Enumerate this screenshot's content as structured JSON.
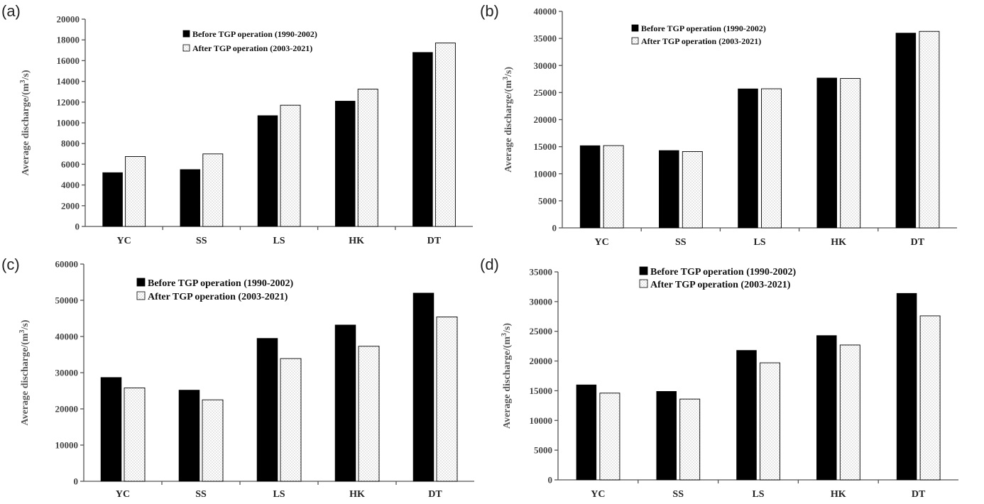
{
  "chart_data": [
    {
      "panel": "(a)",
      "type": "bar",
      "categories": [
        "YC",
        "SS",
        "LS",
        "HK",
        "DT"
      ],
      "series": [
        {
          "name": "Before TGP operation (1990-2002)",
          "values": [
            5200,
            5500,
            10700,
            12100,
            16800
          ]
        },
        {
          "name": "After TGP operation (2003-2021)",
          "values": [
            6750,
            7000,
            11700,
            13250,
            17700
          ]
        }
      ],
      "ylabel_main": "Average discharge/(m",
      "ylabel_sup": "3",
      "ylabel_tail": "/s)",
      "ylim": [
        0,
        20000
      ],
      "yticks": [
        "0",
        "2000",
        "4000",
        "6000",
        "8000",
        "10000",
        "12000",
        "14000",
        "16000",
        "18000",
        "20000"
      ],
      "legend_position": "top-center",
      "grid": false
    },
    {
      "panel": "(b)",
      "type": "bar",
      "categories": [
        "YC",
        "SS",
        "LS",
        "HK",
        "DT"
      ],
      "series": [
        {
          "name": "Before TGP operation (1990-2002)",
          "values": [
            15200,
            14300,
            25700,
            27700,
            36000
          ]
        },
        {
          "name": "After TGP operation (2003-2021)",
          "values": [
            15200,
            14100,
            25700,
            27600,
            36300
          ]
        }
      ],
      "ylabel_main": "Average discharge/(m",
      "ylabel_sup": "3",
      "ylabel_tail": "/s)",
      "ylim": [
        0,
        40000
      ],
      "yticks": [
        "0",
        "5000",
        "10000",
        "15000",
        "20000",
        "25000",
        "30000",
        "35000",
        "40000"
      ],
      "legend_position": "top-center",
      "grid": false
    },
    {
      "panel": "(c)",
      "type": "bar",
      "categories": [
        "YC",
        "SS",
        "LS",
        "HK",
        "DT"
      ],
      "series": [
        {
          "name": "Before TGP operation (1990-2002)",
          "values": [
            28700,
            25200,
            39500,
            43200,
            52000
          ]
        },
        {
          "name": "After TGP operation (2003-2021)",
          "values": [
            25800,
            22500,
            33900,
            37300,
            45400
          ]
        }
      ],
      "ylabel_main": "Average discharge/(m",
      "ylabel_sup": "3",
      "ylabel_tail": "/s)",
      "ylim": [
        0,
        60000
      ],
      "yticks": [
        "0",
        "10000",
        "20000",
        "30000",
        "40000",
        "50000",
        "60000"
      ],
      "legend_position": "top-center",
      "grid": false
    },
    {
      "panel": "(d)",
      "type": "bar",
      "categories": [
        "YC",
        "SS",
        "LS",
        "HK",
        "DT"
      ],
      "series": [
        {
          "name": "Before TGP operation (1990-2002)",
          "values": [
            16000,
            14900,
            21800,
            24300,
            31400
          ]
        },
        {
          "name": "After TGP operation (2003-2021)",
          "values": [
            14600,
            13600,
            19700,
            22700,
            27600
          ]
        }
      ],
      "ylabel_main": "Average discharge/(m",
      "ylabel_sup": "3",
      "ylabel_tail": "/s)",
      "ylim": [
        0,
        35000
      ],
      "yticks": [
        "0",
        "5000",
        "10000",
        "15000",
        "20000",
        "25000",
        "30000",
        "35000"
      ],
      "legend_position": "top-center",
      "grid": false
    }
  ],
  "colors": {
    "before_fill": "#000000",
    "after_fill": "#ffffff",
    "after_dots": "#8a8a8a",
    "axis": "#555555"
  }
}
